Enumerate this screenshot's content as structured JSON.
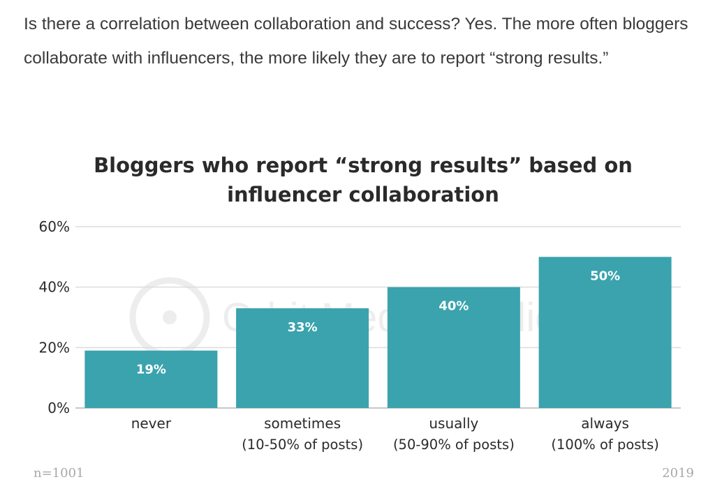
{
  "article": {
    "intro": "Is there a correlation between collaboration and success? Yes. The more often bloggers collaborate with influencers, the more likely they are to report “strong results.”"
  },
  "watermark": "Orbit Media Studios",
  "chart_data": {
    "type": "bar",
    "title": "Bloggers who report “strong results” based on influencer collaboration",
    "categories": [
      "never",
      "sometimes",
      "usually",
      "always"
    ],
    "category_sublabels": [
      "",
      "(10-50% of posts)",
      "(50-90% of posts)",
      "(100% of posts)"
    ],
    "values": [
      19,
      33,
      40,
      50
    ],
    "value_labels": [
      "19%",
      "33%",
      "40%",
      "50%"
    ],
    "yticks": [
      "0%",
      "20%",
      "40%",
      "60%"
    ],
    "ylim": [
      0,
      60
    ],
    "grid": true,
    "color": "#3aa3ad",
    "footnote_left": "n=1001",
    "footnote_right": "2019"
  }
}
